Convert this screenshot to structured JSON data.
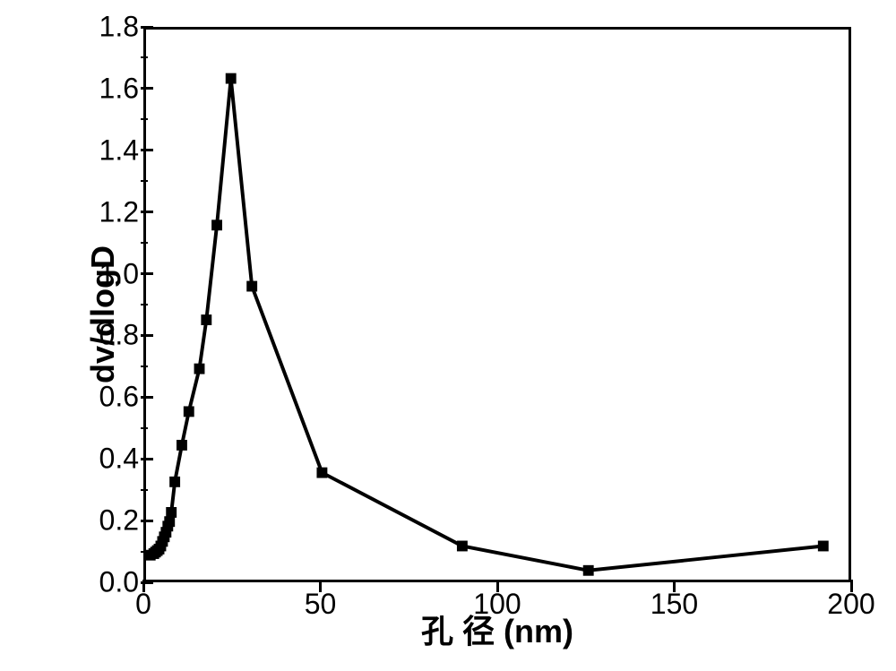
{
  "chart": {
    "type": "line",
    "xlabel": "孔 径 (nm)",
    "ylabel": "dv/dlogD",
    "title_fontsize": 36,
    "label_fontsize": 36,
    "tick_fontsize": 32,
    "line_color": "#000000",
    "line_width": 4,
    "marker_style": "square",
    "marker_size": 12,
    "marker_color": "#000000",
    "background_color": "#ffffff",
    "border_color": "#000000",
    "border_width": 3,
    "xlim": [
      0,
      200
    ],
    "ylim": [
      0,
      1.8
    ],
    "xtick_step": 50,
    "ytick_step": 0.2,
    "xticks": [
      0,
      50,
      100,
      150,
      200
    ],
    "yticks": [
      0.0,
      0.2,
      0.4,
      0.6,
      0.8,
      1.0,
      1.2,
      1.4,
      1.6,
      1.8
    ],
    "yticks_labels": [
      "0.0",
      "0.2",
      "0.4",
      "0.6",
      "0.8",
      "1.0",
      "1.2",
      "1.4",
      "1.6",
      "1.8"
    ],
    "data_points": [
      {
        "x": 1,
        "y": 0.08
      },
      {
        "x": 2,
        "y": 0.085
      },
      {
        "x": 2.5,
        "y": 0.09
      },
      {
        "x": 3,
        "y": 0.095
      },
      {
        "x": 3.5,
        "y": 0.1
      },
      {
        "x": 4,
        "y": 0.11
      },
      {
        "x": 4.5,
        "y": 0.125
      },
      {
        "x": 5,
        "y": 0.14
      },
      {
        "x": 5.5,
        "y": 0.155
      },
      {
        "x": 6,
        "y": 0.175
      },
      {
        "x": 6.5,
        "y": 0.19
      },
      {
        "x": 7,
        "y": 0.22
      },
      {
        "x": 8,
        "y": 0.32
      },
      {
        "x": 10,
        "y": 0.44
      },
      {
        "x": 12,
        "y": 0.55
      },
      {
        "x": 15,
        "y": 0.69
      },
      {
        "x": 17,
        "y": 0.85
      },
      {
        "x": 20,
        "y": 1.16
      },
      {
        "x": 24,
        "y": 1.64
      },
      {
        "x": 30,
        "y": 0.96
      },
      {
        "x": 50,
        "y": 0.35
      },
      {
        "x": 90,
        "y": 0.11
      },
      {
        "x": 126,
        "y": 0.03
      },
      {
        "x": 193,
        "y": 0.11
      }
    ]
  }
}
